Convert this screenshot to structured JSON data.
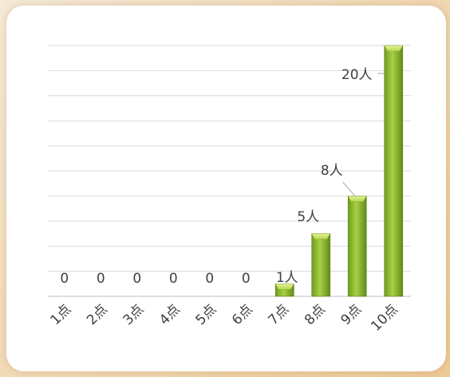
{
  "chart_data": {
    "type": "bar",
    "categories": [
      "1点",
      "2点",
      "3点",
      "4点",
      "5点",
      "6点",
      "7点",
      "8点",
      "9点",
      "10点"
    ],
    "values": [
      0,
      0,
      0,
      0,
      0,
      0,
      1,
      5,
      8,
      20
    ],
    "data_labels": [
      "0",
      "0",
      "0",
      "0",
      "0",
      "0",
      "1人",
      "5人",
      "8人",
      "20人"
    ],
    "ylim": [
      0,
      20
    ],
    "grid": true,
    "legend": "none",
    "colors": {
      "bar_light": "#c6e05a",
      "bar_mid": "#8ab62d",
      "bar_dark": "#5c8a18",
      "grid": "#d9d9d9"
    }
  }
}
